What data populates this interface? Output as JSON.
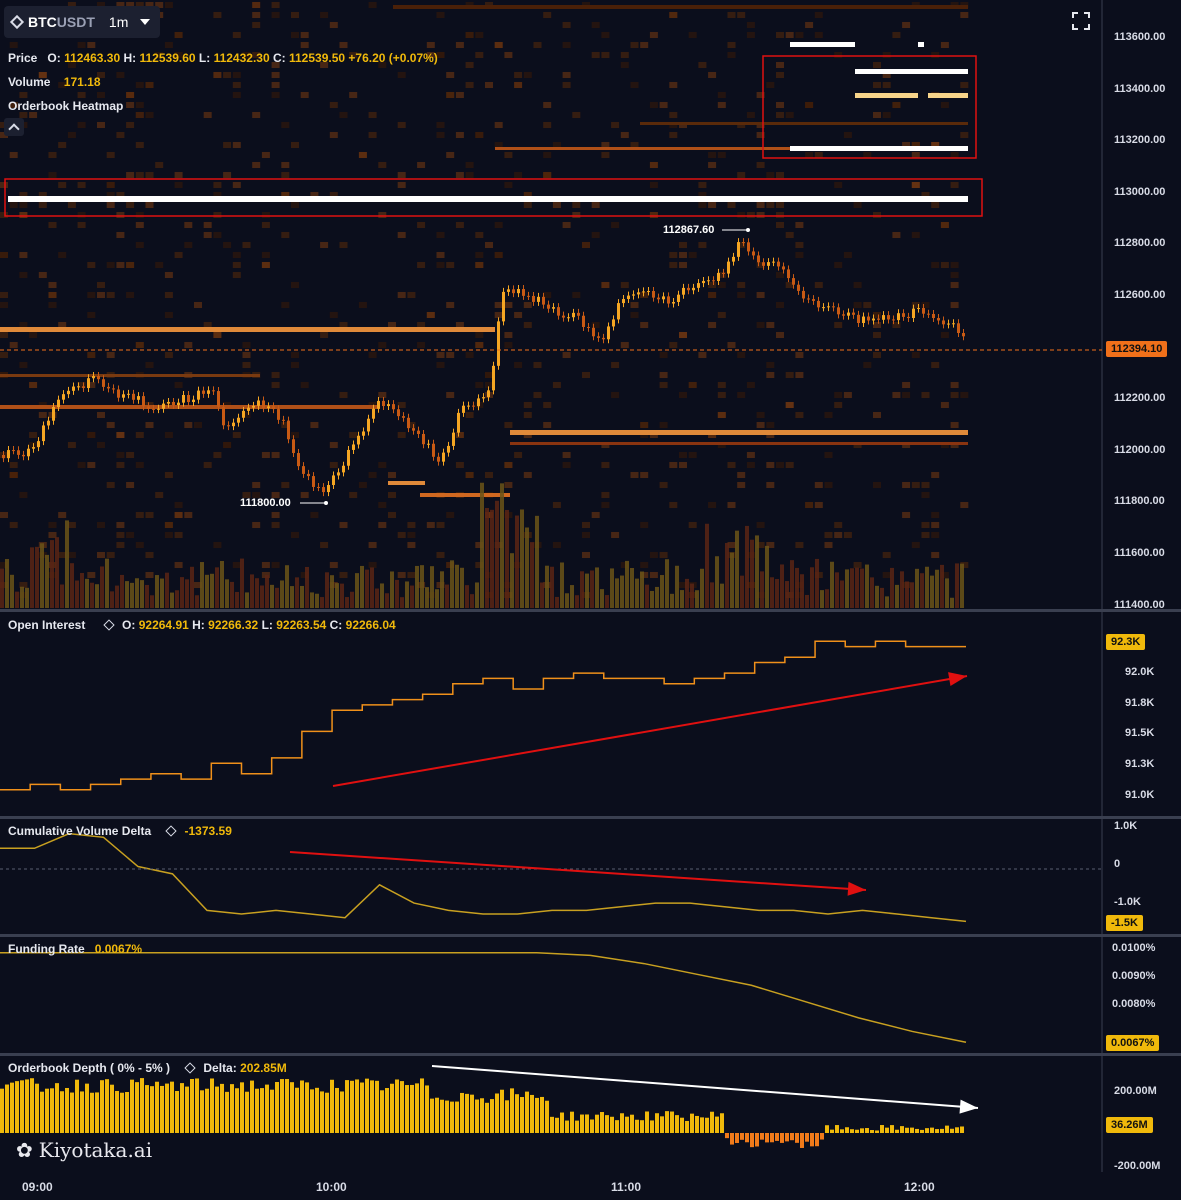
{
  "header": {
    "symbol_base": "BTC",
    "symbol_quote": "USDT",
    "timeframe": "1m"
  },
  "price_legend": {
    "label": "Price",
    "o_k": "O:",
    "o": "112463.30",
    "h_k": "H:",
    "h": "112539.60",
    "l_k": "L:",
    "l": "112432.30",
    "c_k": "C:",
    "c": "112539.50",
    "change": "+76.20",
    "change_pct": "(+0.07%)"
  },
  "volume_legend": {
    "label": "Volume",
    "value": "171.18"
  },
  "heatmap_legend": {
    "label": "Orderbook Heatmap"
  },
  "markers": {
    "high": "112867.60",
    "low": "111800.00"
  },
  "price_axis": {
    "ticks": [
      "113600.00",
      "113400.00",
      "113200.00",
      "113000.00",
      "112800.00",
      "112600.00",
      "112400.00",
      "112200.00",
      "112000.00",
      "111800.00",
      "111600.00",
      "111400.00"
    ],
    "last_price": "112394.10"
  },
  "oi": {
    "label": "Open Interest",
    "o_k": "O:",
    "o": "92264.91",
    "h_k": "H:",
    "h": "92266.32",
    "l_k": "L:",
    "l": "92263.54",
    "c_k": "C:",
    "c": "92266.04",
    "ticks": [
      "92.0K",
      "91.8K",
      "91.5K",
      "91.3K",
      "91.0K"
    ],
    "last": "92.3K"
  },
  "cvd": {
    "label": "Cumulative Volume Delta",
    "value": "-1373.59",
    "ticks": [
      "1.0K",
      "0",
      "-1.0K"
    ],
    "last": "-1.5K"
  },
  "funding": {
    "label": "Funding Rate",
    "value": "0.0067%",
    "ticks": [
      "0.0100%",
      "0.0090%",
      "0.0080%"
    ],
    "last": "0.0067%"
  },
  "depth": {
    "label": "Orderbook Depth ( 0% - 5% )",
    "delta_label": "Delta:",
    "delta": "202.85M",
    "ticks": [
      "200.00M",
      "-200.00M"
    ],
    "last": "36.26M"
  },
  "time_axis": [
    "09:00",
    "10:00",
    "11:00",
    "12:00"
  ],
  "brand": {
    "name": "Kiyotaka.ai"
  },
  "colors": {
    "bg": "#0b0e1c",
    "accent": "#f0b90b",
    "up": "#f5a623",
    "annotation": "#e01010",
    "last_price": "#f0701a"
  },
  "chart_data": [
    {
      "type": "line",
      "title": "",
      "series": [
        {
          "name": "Open Interest",
          "values": [
            90.95,
            91.0,
            90.95,
            91.0,
            91.05,
            91.1,
            91.05,
            91.2,
            91.1,
            91.25,
            91.5,
            91.7,
            91.75,
            91.8,
            91.85,
            91.95,
            92.0,
            91.9,
            92.0,
            92.05,
            92.0,
            92.0,
            91.95,
            92.0,
            92.05,
            92.15,
            92.2,
            92.35,
            92.3,
            92.35,
            92.3,
            92.3,
            92.3
          ]
        }
      ]
    },
    {
      "type": "line",
      "title": "",
      "series": [
        {
          "name": "Cumulative Volume Delta",
          "values": [
            0.5,
            0.5,
            0.9,
            0.8,
            0.0,
            -0.2,
            -1.2,
            -1.3,
            -1.2,
            -1.3,
            -1.4,
            -0.5,
            -1.0,
            -1.2,
            -1.3,
            -1.3,
            -1.2,
            -1.2,
            -1.1,
            -1.0,
            -1.0,
            -1.1,
            -1.2,
            -1.2,
            -1.3,
            -1.2,
            -1.3,
            -1.4,
            -1.5
          ]
        }
      ]
    },
    {
      "type": "line",
      "title": "",
      "series": [
        {
          "name": "Funding Rate",
          "values": [
            0.01,
            0.01,
            0.01,
            0.01,
            0.01,
            0.01,
            0.01,
            0.01,
            0.01,
            0.01,
            0.01,
            0.0099,
            0.0096,
            0.0092,
            0.0088,
            0.0082,
            0.0076,
            0.0071,
            0.0067
          ]
        }
      ]
    }
  ]
}
